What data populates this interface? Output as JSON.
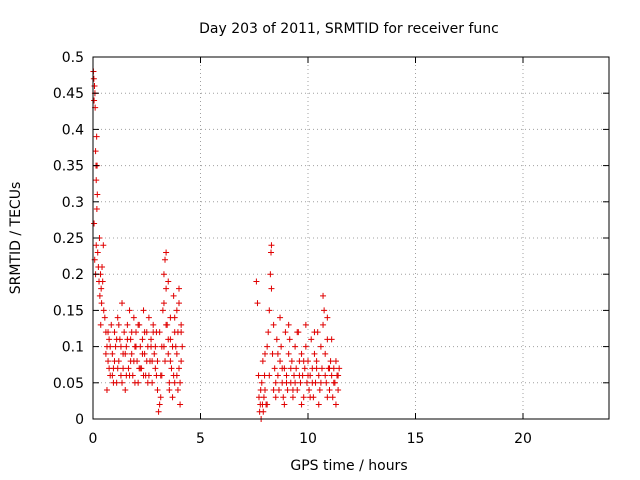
{
  "chart_data": {
    "type": "scatter",
    "title": "Day 203 of 2011, SRMTID for receiver func",
    "xlabel": "GPS time / hours",
    "ylabel": "SRMTID / TECUs",
    "xlim": [
      0,
      24
    ],
    "ylim": [
      0,
      0.5
    ],
    "xticks": [
      0,
      5,
      10,
      15,
      20
    ],
    "yticks": [
      0,
      0.05,
      0.1,
      0.15,
      0.2,
      0.25,
      0.3,
      0.35,
      0.4,
      0.45,
      0.5
    ],
    "grid": true,
    "marker": "plus",
    "color": "#e00000",
    "series": [
      {
        "name": "SRMTID",
        "points": [
          [
            0.02,
            0.48
          ],
          [
            0.04,
            0.47
          ],
          [
            0.05,
            0.44
          ],
          [
            0.07,
            0.46
          ],
          [
            0.09,
            0.45
          ],
          [
            0.1,
            0.43
          ],
          [
            0.12,
            0.37
          ],
          [
            0.14,
            0.35
          ],
          [
            0.15,
            0.33
          ],
          [
            0.17,
            0.39
          ],
          [
            0.19,
            0.35
          ],
          [
            0.2,
            0.31
          ],
          [
            0.05,
            0.27
          ],
          [
            0.08,
            0.22
          ],
          [
            0.12,
            0.2
          ],
          [
            0.15,
            0.24
          ],
          [
            0.18,
            0.29
          ],
          [
            0.22,
            0.23
          ],
          [
            0.25,
            0.21
          ],
          [
            0.28,
            0.19
          ],
          [
            0.3,
            0.25
          ],
          [
            0.35,
            0.2
          ],
          [
            0.38,
            0.18
          ],
          [
            0.4,
            0.16
          ],
          [
            0.45,
            0.19
          ],
          [
            0.48,
            0.24
          ],
          [
            0.5,
            0.15
          ],
          [
            0.32,
            0.17
          ],
          [
            0.36,
            0.13
          ],
          [
            0.42,
            0.21
          ],
          [
            0.55,
            0.14
          ],
          [
            0.6,
            0.12
          ],
          [
            0.65,
            0.1
          ],
          [
            0.7,
            0.08
          ],
          [
            0.75,
            0.11
          ],
          [
            0.8,
            0.06
          ],
          [
            0.85,
            0.13
          ],
          [
            0.9,
            0.09
          ],
          [
            0.95,
            0.07
          ],
          [
            1.0,
            0.12
          ],
          [
            1.05,
            0.1
          ],
          [
            1.1,
            0.05
          ],
          [
            1.15,
            0.14
          ],
          [
            1.2,
            0.08
          ],
          [
            1.25,
            0.11
          ],
          [
            1.3,
            0.06
          ],
          [
            1.35,
            0.16
          ],
          [
            1.4,
            0.09
          ],
          [
            1.45,
            0.12
          ],
          [
            1.5,
            0.04
          ],
          [
            1.55,
            0.1
          ],
          [
            1.6,
            0.13
          ],
          [
            1.65,
            0.07
          ],
          [
            1.7,
            0.15
          ],
          [
            1.75,
            0.11
          ],
          [
            1.8,
            0.09
          ],
          [
            1.85,
            0.06
          ],
          [
            1.9,
            0.14
          ],
          [
            1.95,
            0.1
          ],
          [
            2.0,
            0.12
          ],
          [
            2.05,
            0.08
          ],
          [
            2.1,
            0.05
          ],
          [
            2.15,
            0.13
          ],
          [
            2.2,
            0.1
          ],
          [
            2.25,
            0.07
          ],
          [
            2.3,
            0.11
          ],
          [
            2.35,
            0.15
          ],
          [
            2.4,
            0.09
          ],
          [
            2.45,
            0.06
          ],
          [
            2.5,
            0.12
          ],
          [
            2.55,
            0.1
          ],
          [
            2.6,
            0.14
          ],
          [
            2.65,
            0.08
          ],
          [
            2.7,
            0.11
          ],
          [
            2.75,
            0.05
          ],
          [
            2.8,
            0.13
          ],
          [
            2.85,
            0.09
          ],
          [
            2.9,
            0.07
          ],
          [
            2.95,
            0.12
          ],
          [
            3.0,
            0.04
          ],
          [
            3.05,
            0.01
          ],
          [
            3.1,
            0.02
          ],
          [
            3.15,
            0.06
          ],
          [
            3.2,
            0.1
          ],
          [
            3.25,
            0.15
          ],
          [
            3.3,
            0.2
          ],
          [
            3.35,
            0.22
          ],
          [
            3.4,
            0.18
          ],
          [
            3.45,
            0.13
          ],
          [
            3.5,
            0.09
          ],
          [
            3.55,
            0.05
          ],
          [
            3.6,
            0.11
          ],
          [
            3.65,
            0.07
          ],
          [
            3.7,
            0.03
          ],
          [
            3.75,
            0.17
          ],
          [
            3.8,
            0.14
          ],
          [
            3.85,
            0.1
          ],
          [
            3.9,
            0.06
          ],
          [
            3.95,
            0.12
          ],
          [
            4.0,
            0.16
          ],
          [
            4.05,
            0.02
          ],
          [
            4.1,
            0.08
          ],
          [
            4.15,
            0.1
          ],
          [
            0.6,
            0.09
          ],
          [
            0.7,
            0.12
          ],
          [
            0.8,
            0.1
          ],
          [
            0.9,
            0.06
          ],
          [
            1.0,
            0.08
          ],
          [
            1.1,
            0.11
          ],
          [
            1.2,
            0.13
          ],
          [
            1.3,
            0.1
          ],
          [
            1.4,
            0.07
          ],
          [
            1.5,
            0.09
          ],
          [
            1.6,
            0.11
          ],
          [
            1.7,
            0.06
          ],
          [
            1.8,
            0.12
          ],
          [
            1.9,
            0.08
          ],
          [
            2.0,
            0.1
          ],
          [
            2.1,
            0.13
          ],
          [
            2.2,
            0.07
          ],
          [
            2.3,
            0.09
          ],
          [
            2.4,
            0.12
          ],
          [
            2.5,
            0.08
          ],
          [
            2.6,
            0.06
          ],
          [
            2.7,
            0.1
          ],
          [
            2.8,
            0.12
          ],
          [
            2.9,
            0.1
          ],
          [
            3.0,
            0.08
          ],
          [
            3.1,
            0.12
          ],
          [
            3.2,
            0.06
          ],
          [
            3.3,
            0.1
          ],
          [
            3.4,
            0.13
          ],
          [
            3.5,
            0.11
          ],
          [
            3.6,
            0.08
          ],
          [
            3.7,
            0.1
          ],
          [
            3.8,
            0.05
          ],
          [
            3.9,
            0.09
          ],
          [
            4.0,
            0.07
          ],
          [
            4.1,
            0.12
          ],
          [
            0.65,
            0.04
          ],
          [
            0.75,
            0.07
          ],
          [
            0.95,
            0.05
          ],
          [
            1.15,
            0.07
          ],
          [
            1.35,
            0.05
          ],
          [
            1.55,
            0.06
          ],
          [
            1.75,
            0.08
          ],
          [
            1.95,
            0.05
          ],
          [
            2.15,
            0.07
          ],
          [
            2.35,
            0.06
          ],
          [
            2.55,
            0.05
          ],
          [
            2.75,
            0.08
          ],
          [
            2.95,
            0.06
          ],
          [
            3.15,
            0.03
          ],
          [
            3.35,
            0.08
          ],
          [
            3.55,
            0.04
          ],
          [
            3.75,
            0.06
          ],
          [
            3.95,
            0.04
          ],
          [
            4.05,
            0.05
          ],
          [
            3.3,
            0.16
          ],
          [
            3.4,
            0.23
          ],
          [
            3.5,
            0.19
          ],
          [
            3.6,
            0.14
          ],
          [
            3.8,
            0.12
          ],
          [
            3.9,
            0.15
          ],
          [
            4.0,
            0.18
          ],
          [
            4.1,
            0.13
          ],
          [
            7.6,
            0.19
          ],
          [
            7.65,
            0.16
          ],
          [
            7.7,
            0.06
          ],
          [
            7.72,
            0.03
          ],
          [
            7.75,
            0.01
          ],
          [
            7.78,
            0.02
          ],
          [
            7.8,
            0.04
          ],
          [
            7.82,
            0.0
          ],
          [
            7.85,
            0.05
          ],
          [
            7.88,
            0.02
          ],
          [
            7.9,
            0.08
          ],
          [
            7.92,
            0.01
          ],
          [
            7.95,
            0.03
          ],
          [
            7.98,
            0.06
          ],
          [
            8.0,
            0.04
          ],
          [
            8.05,
            0.02
          ],
          [
            8.1,
            0.1
          ],
          [
            8.15,
            0.12
          ],
          [
            8.2,
            0.15
          ],
          [
            8.25,
            0.2
          ],
          [
            8.28,
            0.23
          ],
          [
            8.3,
            0.18
          ],
          [
            8.35,
            0.09
          ],
          [
            8.4,
            0.13
          ],
          [
            8.45,
            0.07
          ],
          [
            8.5,
            0.05
          ],
          [
            8.55,
            0.11
          ],
          [
            8.6,
            0.06
          ],
          [
            8.65,
            0.04
          ],
          [
            8.7,
            0.08
          ],
          [
            8.75,
            0.1
          ],
          [
            8.8,
            0.05
          ],
          [
            8.85,
            0.03
          ],
          [
            8.9,
            0.07
          ],
          [
            8.95,
            0.12
          ],
          [
            9.0,
            0.06
          ],
          [
            9.05,
            0.04
          ],
          [
            9.1,
            0.09
          ],
          [
            9.15,
            0.11
          ],
          [
            9.2,
            0.05
          ],
          [
            9.25,
            0.08
          ],
          [
            9.3,
            0.03
          ],
          [
            9.35,
            0.06
          ],
          [
            9.4,
            0.1
          ],
          [
            9.45,
            0.07
          ],
          [
            9.5,
            0.04
          ],
          [
            9.55,
            0.12
          ],
          [
            9.6,
            0.08
          ],
          [
            9.65,
            0.05
          ],
          [
            9.7,
            0.09
          ],
          [
            9.75,
            0.06
          ],
          [
            9.8,
            0.03
          ],
          [
            9.85,
            0.07
          ],
          [
            9.9,
            0.1
          ],
          [
            9.95,
            0.05
          ],
          [
            10.0,
            0.08
          ],
          [
            10.05,
            0.04
          ],
          [
            10.1,
            0.06
          ],
          [
            10.15,
            0.11
          ],
          [
            10.2,
            0.07
          ],
          [
            10.25,
            0.03
          ],
          [
            10.3,
            0.09
          ],
          [
            10.35,
            0.05
          ],
          [
            10.4,
            0.08
          ],
          [
            10.45,
            0.12
          ],
          [
            10.5,
            0.06
          ],
          [
            10.55,
            0.04
          ],
          [
            10.6,
            0.1
          ],
          [
            10.65,
            0.07
          ],
          [
            10.7,
            0.13
          ],
          [
            10.75,
            0.15
          ],
          [
            10.8,
            0.09
          ],
          [
            10.85,
            0.05
          ],
          [
            10.9,
            0.11
          ],
          [
            10.95,
            0.07
          ],
          [
            11.0,
            0.04
          ],
          [
            11.05,
            0.08
          ],
          [
            11.1,
            0.06
          ],
          [
            11.15,
            0.03
          ],
          [
            11.2,
            0.07
          ],
          [
            11.25,
            0.05
          ],
          [
            11.3,
            0.08
          ],
          [
            11.35,
            0.06
          ],
          [
            11.4,
            0.04
          ],
          [
            11.45,
            0.07
          ],
          [
            8.0,
            0.09
          ],
          [
            8.2,
            0.06
          ],
          [
            8.4,
            0.04
          ],
          [
            8.6,
            0.09
          ],
          [
            8.8,
            0.07
          ],
          [
            9.0,
            0.05
          ],
          [
            9.2,
            0.07
          ],
          [
            9.4,
            0.05
          ],
          [
            9.6,
            0.06
          ],
          [
            9.8,
            0.08
          ],
          [
            10.0,
            0.06
          ],
          [
            10.2,
            0.05
          ],
          [
            10.4,
            0.07
          ],
          [
            10.6,
            0.05
          ],
          [
            10.8,
            0.06
          ],
          [
            11.0,
            0.07
          ],
          [
            11.2,
            0.05
          ],
          [
            11.4,
            0.06
          ],
          [
            8.1,
            0.02
          ],
          [
            8.5,
            0.03
          ],
          [
            8.9,
            0.02
          ],
          [
            9.3,
            0.04
          ],
          [
            9.7,
            0.02
          ],
          [
            10.1,
            0.03
          ],
          [
            10.5,
            0.02
          ],
          [
            10.9,
            0.03
          ],
          [
            11.3,
            0.02
          ],
          [
            8.3,
            0.24
          ],
          [
            8.7,
            0.14
          ],
          [
            9.1,
            0.13
          ],
          [
            9.5,
            0.12
          ],
          [
            9.9,
            0.13
          ],
          [
            10.3,
            0.12
          ],
          [
            10.7,
            0.17
          ],
          [
            10.9,
            0.14
          ],
          [
            11.1,
            0.11
          ]
        ]
      }
    ]
  }
}
